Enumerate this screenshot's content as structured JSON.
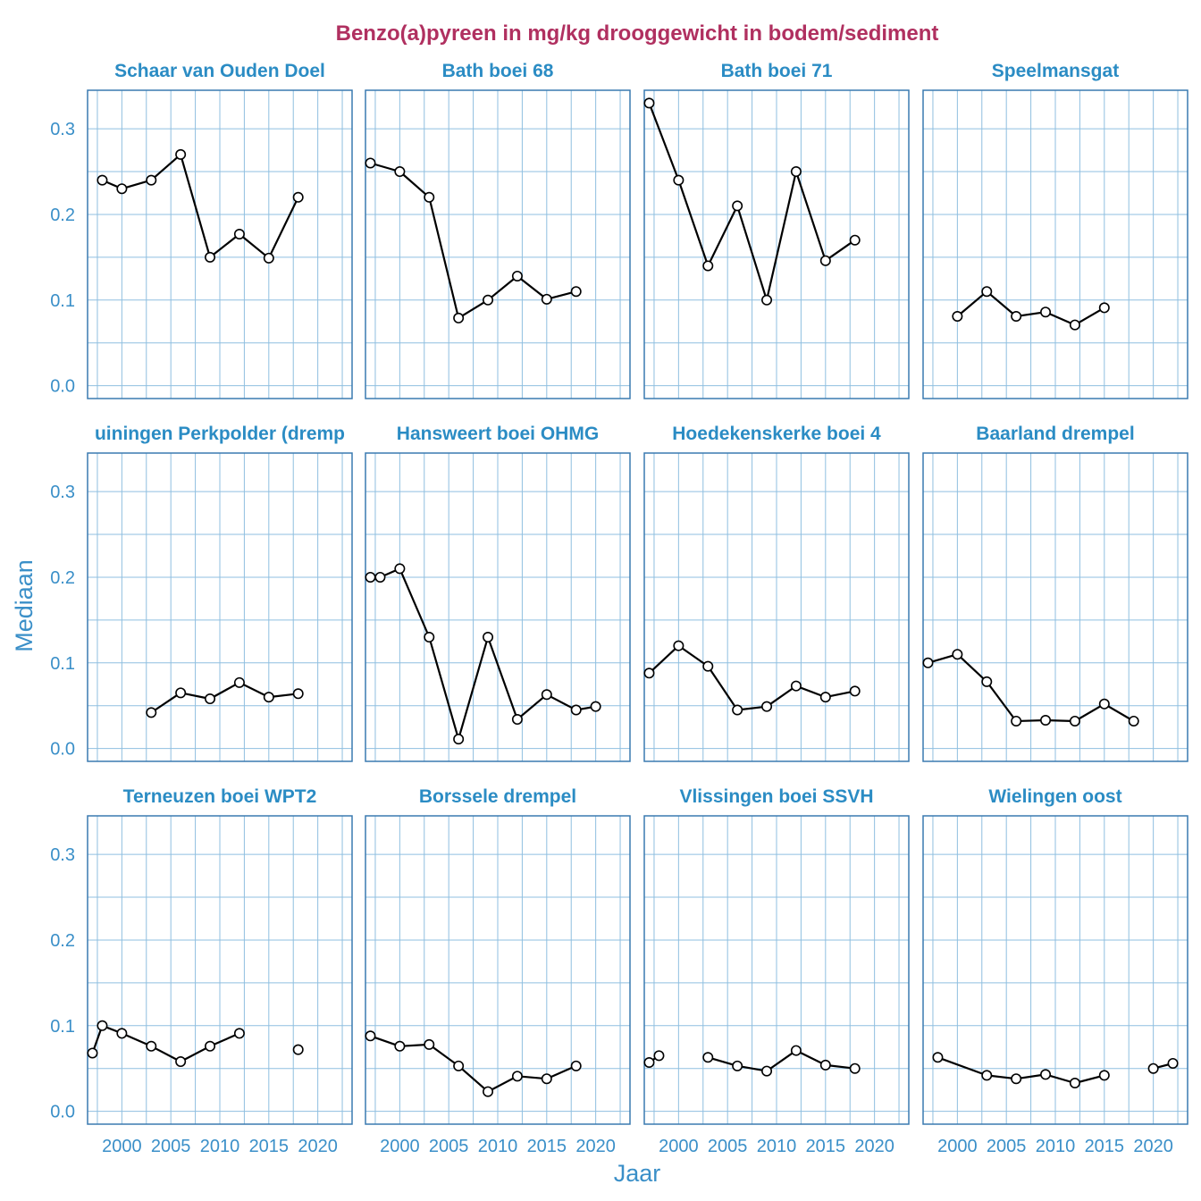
{
  "chart_data": {
    "type": "line",
    "title": "Benzo(a)pyreen in mg/kg drooggewicht in bodem/sediment",
    "xlabel": "Jaar",
    "ylabel": "Mediaan",
    "xlim": [
      1996.5,
      2023.5
    ],
    "ylim": [
      -0.015,
      0.345
    ],
    "x_ticks": [
      2000,
      2005,
      2010,
      2015,
      2020
    ],
    "x_tick_labels": [
      "2000",
      "2005",
      "2010",
      "2015",
      "2020"
    ],
    "y_ticks": [
      0.0,
      0.1,
      0.2,
      0.3
    ],
    "y_tick_labels": [
      "0.0",
      "0.1",
      "0.2",
      "0.3"
    ],
    "panels": [
      {
        "name": "Schaar van Ouden Doel",
        "segments": [
          [
            [
              1998,
              0.24
            ],
            [
              2000,
              0.23
            ],
            [
              2003,
              0.24
            ],
            [
              2006,
              0.27
            ],
            [
              2009,
              0.15
            ],
            [
              2012,
              0.177
            ],
            [
              2015,
              0.149
            ],
            [
              2018,
              0.22
            ]
          ]
        ]
      },
      {
        "name": "Bath boei 68",
        "segments": [
          [
            [
              1997,
              0.26
            ],
            [
              2000,
              0.25
            ],
            [
              2003,
              0.22
            ],
            [
              2006,
              0.079
            ],
            [
              2009,
              0.1
            ],
            [
              2012,
              0.128
            ],
            [
              2015,
              0.101
            ],
            [
              2018,
              0.11
            ]
          ]
        ]
      },
      {
        "name": "Bath boei 71",
        "segments": [
          [
            [
              1997,
              0.33
            ],
            [
              2000,
              0.24
            ],
            [
              2003,
              0.14
            ],
            [
              2006,
              0.21
            ],
            [
              2009,
              0.1
            ],
            [
              2012,
              0.25
            ],
            [
              2015,
              0.146
            ],
            [
              2018,
              0.17
            ]
          ]
        ]
      },
      {
        "name": "Speelmansgat",
        "segments": [
          [
            [
              2000,
              0.081
            ],
            [
              2003,
              0.11
            ],
            [
              2006,
              0.081
            ],
            [
              2009,
              0.086
            ],
            [
              2012,
              0.071
            ],
            [
              2015,
              0.091
            ]
          ]
        ]
      },
      {
        "name": "Ossenisse-Baalhoek / Walsoorden-Kruiningen Perkpolder (drempel)",
        "display_name": "uiningen Perkpolder (dremp",
        "segments": [
          [
            [
              2003,
              0.042
            ],
            [
              2006,
              0.065
            ],
            [
              2009,
              0.058
            ],
            [
              2012,
              0.077
            ],
            [
              2015,
              0.06
            ],
            [
              2018,
              0.064
            ]
          ]
        ]
      },
      {
        "name": "Hansweert boei OHMG",
        "segments": [
          [
            [
              1997,
              0.2
            ],
            [
              1998,
              0.2
            ],
            [
              2000,
              0.21
            ],
            [
              2003,
              0.13
            ],
            [
              2006,
              0.011
            ],
            [
              2009,
              0.13
            ],
            [
              2012,
              0.034
            ],
            [
              2015,
              0.063
            ],
            [
              2018,
              0.045
            ],
            [
              2020,
              0.049
            ]
          ]
        ]
      },
      {
        "name": "Hoedekenskerke boei 4",
        "segments": [
          [
            [
              1997,
              0.088
            ],
            [
              2000,
              0.12
            ],
            [
              2003,
              0.096
            ],
            [
              2006,
              0.045
            ],
            [
              2009,
              0.049
            ],
            [
              2012,
              0.073
            ],
            [
              2015,
              0.06
            ],
            [
              2018,
              0.067
            ]
          ]
        ]
      },
      {
        "name": "Baarland drempel",
        "segments": [
          [
            [
              1997,
              0.1
            ],
            [
              2000,
              0.11
            ],
            [
              2003,
              0.078
            ],
            [
              2006,
              0.032
            ],
            [
              2009,
              0.033
            ],
            [
              2012,
              0.032
            ],
            [
              2015,
              0.052
            ],
            [
              2018,
              0.032
            ]
          ]
        ]
      },
      {
        "name": "Terneuzen boei WPT2",
        "segments": [
          [
            [
              1997,
              0.068
            ],
            [
              1998,
              0.1
            ],
            [
              2000,
              0.091
            ],
            [
              2003,
              0.076
            ],
            [
              2006,
              0.058
            ],
            [
              2009,
              0.076
            ],
            [
              2012,
              0.091
            ]
          ],
          [
            [
              2018,
              0.072
            ]
          ]
        ]
      },
      {
        "name": "Borssele drempel",
        "segments": [
          [
            [
              1997,
              0.088
            ],
            [
              2000,
              0.076
            ],
            [
              2003,
              0.078
            ],
            [
              2006,
              0.053
            ],
            [
              2009,
              0.023
            ],
            [
              2012,
              0.041
            ],
            [
              2015,
              0.038
            ],
            [
              2018,
              0.053
            ]
          ]
        ]
      },
      {
        "name": "Vlissingen boei SSVH",
        "segments": [
          [
            [
              1997,
              0.057
            ],
            [
              1998,
              0.065
            ]
          ],
          [
            [
              2003,
              0.063
            ],
            [
              2006,
              0.053
            ],
            [
              2009,
              0.047
            ],
            [
              2012,
              0.071
            ],
            [
              2015,
              0.054
            ],
            [
              2018,
              0.05
            ]
          ]
        ]
      },
      {
        "name": "Wielingen oost",
        "segments": [
          [
            [
              1998,
              0.063
            ],
            [
              2003,
              0.042
            ],
            [
              2006,
              0.038
            ],
            [
              2009,
              0.043
            ],
            [
              2012,
              0.033
            ],
            [
              2015,
              0.042
            ]
          ],
          [
            [
              2020,
              0.05
            ],
            [
              2022,
              0.056
            ]
          ]
        ]
      }
    ]
  }
}
